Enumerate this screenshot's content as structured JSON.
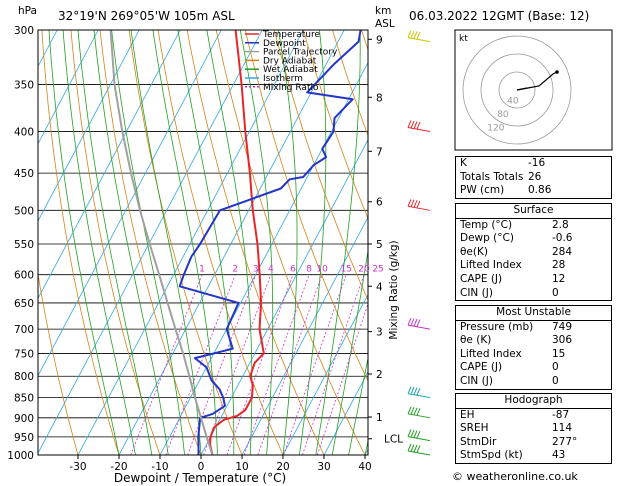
{
  "header": {
    "hpa_label": "hPa",
    "location": "32°19'N  269°05'W  105m  ASL",
    "km_label": "km",
    "asl_label": "ASL",
    "datetime": "06.03.2022  12GMT  (Base: 12)"
  },
  "legend": [
    {
      "name": "Temperature",
      "color": "#e8262a",
      "dash": ""
    },
    {
      "name": "Dewpoint",
      "color": "#2334c8",
      "dash": ""
    },
    {
      "name": "Parcel Trajectory",
      "color": "#a0a0a0",
      "dash": ""
    },
    {
      "name": "Dry Adiabat",
      "color": "#d4821a",
      "dash": ""
    },
    {
      "name": "Wet Adiabat",
      "color": "#22a022",
      "dash": ""
    },
    {
      "name": "Isotherm",
      "color": "#31a7e0",
      "dash": ""
    },
    {
      "name": "Mixing Ratio",
      "color": "#c832c8",
      "dash": "2,2"
    }
  ],
  "chart_data": {
    "type": "line",
    "title": "",
    "xlabel": "Dewpoint / Temperature (°C)",
    "ylabel": "hPa",
    "y2label": "Mixing Ratio (g/kg)",
    "xlim": [
      -40,
      40
    ],
    "ylim": [
      1000,
      300
    ],
    "x_ticks": [
      -30,
      -20,
      -10,
      0,
      10,
      20,
      30,
      40
    ],
    "p_levels": [
      300,
      350,
      400,
      450,
      500,
      550,
      600,
      650,
      700,
      750,
      800,
      850,
      900,
      950,
      1000
    ],
    "km_ticks": [
      {
        "label": "9",
        "p": 308
      },
      {
        "label": "8",
        "p": 363
      },
      {
        "label": "7",
        "p": 423
      },
      {
        "label": "6",
        "p": 488
      },
      {
        "label": "5",
        "p": 550
      },
      {
        "label": "4",
        "p": 620
      },
      {
        "label": "3",
        "p": 705
      },
      {
        "label": "2",
        "p": 795
      },
      {
        "label": "1",
        "p": 898
      },
      {
        "label": "LCL",
        "p": 955
      }
    ],
    "mixing_ratio_labels": [
      "1",
      "2",
      "3",
      "4",
      "6",
      "8",
      "10",
      "15",
      "20",
      "25"
    ],
    "series": [
      {
        "name": "Temperature",
        "points": [
          [
            1000,
            2.8
          ],
          [
            970,
            0.8
          ],
          [
            950,
            0.0
          ],
          [
            925,
            -0.4
          ],
          [
            905,
            1.0
          ],
          [
            895,
            3.8
          ],
          [
            880,
            5.0
          ],
          [
            850,
            5.0
          ],
          [
            820,
            3.6
          ],
          [
            800,
            1.8
          ],
          [
            770,
            1.2
          ],
          [
            750,
            2.2
          ],
          [
            700,
            -2.0
          ],
          [
            650,
            -5.0
          ],
          [
            600,
            -9.0
          ],
          [
            550,
            -13.5
          ],
          [
            500,
            -19.0
          ],
          [
            450,
            -24.5
          ],
          [
            400,
            -31.0
          ],
          [
            350,
            -38.0
          ],
          [
            300,
            -46.5
          ]
        ]
      },
      {
        "name": "Dewpoint",
        "points": [
          [
            1000,
            -0.6
          ],
          [
            970,
            -2.0
          ],
          [
            950,
            -3.0
          ],
          [
            925,
            -4.0
          ],
          [
            900,
            -5.0
          ],
          [
            890,
            -2.5
          ],
          [
            870,
            -0.5
          ],
          [
            850,
            -2.0
          ],
          [
            830,
            -4.0
          ],
          [
            810,
            -7.0
          ],
          [
            780,
            -10.0
          ],
          [
            760,
            -14.0
          ],
          [
            740,
            -6.0
          ],
          [
            700,
            -10.0
          ],
          [
            650,
            -10.5
          ],
          [
            620,
            -27.0
          ],
          [
            600,
            -27.5
          ],
          [
            570,
            -28.0
          ],
          [
            550,
            -27.5
          ],
          [
            500,
            -27.0
          ],
          [
            470,
            -15.0
          ],
          [
            458,
            -14.0
          ],
          [
            455,
            -11.0
          ],
          [
            440,
            -10.0
          ],
          [
            430,
            -8.0
          ],
          [
            420,
            -10.0
          ],
          [
            400,
            -9.5
          ],
          [
            385,
            -11.0
          ],
          [
            365,
            -9.0
          ],
          [
            358,
            -21.0
          ],
          [
            330,
            -18.0
          ],
          [
            310,
            -15.0
          ],
          [
            300,
            -16.0
          ]
        ]
      },
      {
        "name": "Parcel Trajectory",
        "points": [
          [
            1000,
            2.8
          ],
          [
            955,
            -0.6
          ],
          [
            900,
            -4.8
          ],
          [
            850,
            -8.9
          ],
          [
            800,
            -13.0
          ],
          [
            750,
            -17.5
          ],
          [
            700,
            -22.5
          ],
          [
            650,
            -27.8
          ],
          [
            600,
            -33.5
          ],
          [
            550,
            -39.8
          ],
          [
            500,
            -46.5
          ],
          [
            450,
            -53.5
          ],
          [
            400,
            -61.0
          ],
          [
            350,
            -69.0
          ],
          [
            300,
            -77.0
          ]
        ]
      }
    ]
  },
  "hodograph": {
    "unit": "kt",
    "ring_labels": [
      "40",
      "80",
      "120"
    ]
  },
  "indices": {
    "rows": [
      {
        "label": "K",
        "value": "-16"
      },
      {
        "label": "Totals Totals",
        "value": "26"
      },
      {
        "label": "PW (cm)",
        "value": "0.86"
      }
    ]
  },
  "surface": {
    "title": "Surface",
    "rows": [
      {
        "label": "Temp (°C)",
        "value": "2.8"
      },
      {
        "label": "Dewp (°C)",
        "value": "-0.6"
      },
      {
        "label": "θe(K)",
        "value": "284"
      },
      {
        "label": "Lifted Index",
        "value": "28"
      },
      {
        "label": "CAPE (J)",
        "value": "12"
      },
      {
        "label": "CIN (J)",
        "value": "0"
      }
    ]
  },
  "most_unstable": {
    "title": "Most Unstable",
    "rows": [
      {
        "label": "Pressure (mb)",
        "value": "749"
      },
      {
        "label": "θe (K)",
        "value": "306"
      },
      {
        "label": "Lifted Index",
        "value": "15"
      },
      {
        "label": "CAPE (J)",
        "value": "0"
      },
      {
        "label": "CIN (J)",
        "value": "0"
      }
    ]
  },
  "hodograph_table": {
    "title": "Hodograph",
    "rows": [
      {
        "label": "EH",
        "value": "-87"
      },
      {
        "label": "SREH",
        "value": "114"
      },
      {
        "label": "StmDir",
        "value": "277°"
      },
      {
        "label": "StmSpd (kt)",
        "value": "43"
      }
    ]
  },
  "credit": "© weatheronline.co.uk",
  "colors": {
    "temperature": "#e8262a",
    "dewpoint": "#2334c8",
    "parcel": "#a0a0a0",
    "dry_adiabat": "#d4821a",
    "wet_adiabat": "#22a022",
    "isotherm": "#31a7e0",
    "mixing_ratio": "#c832c8"
  }
}
